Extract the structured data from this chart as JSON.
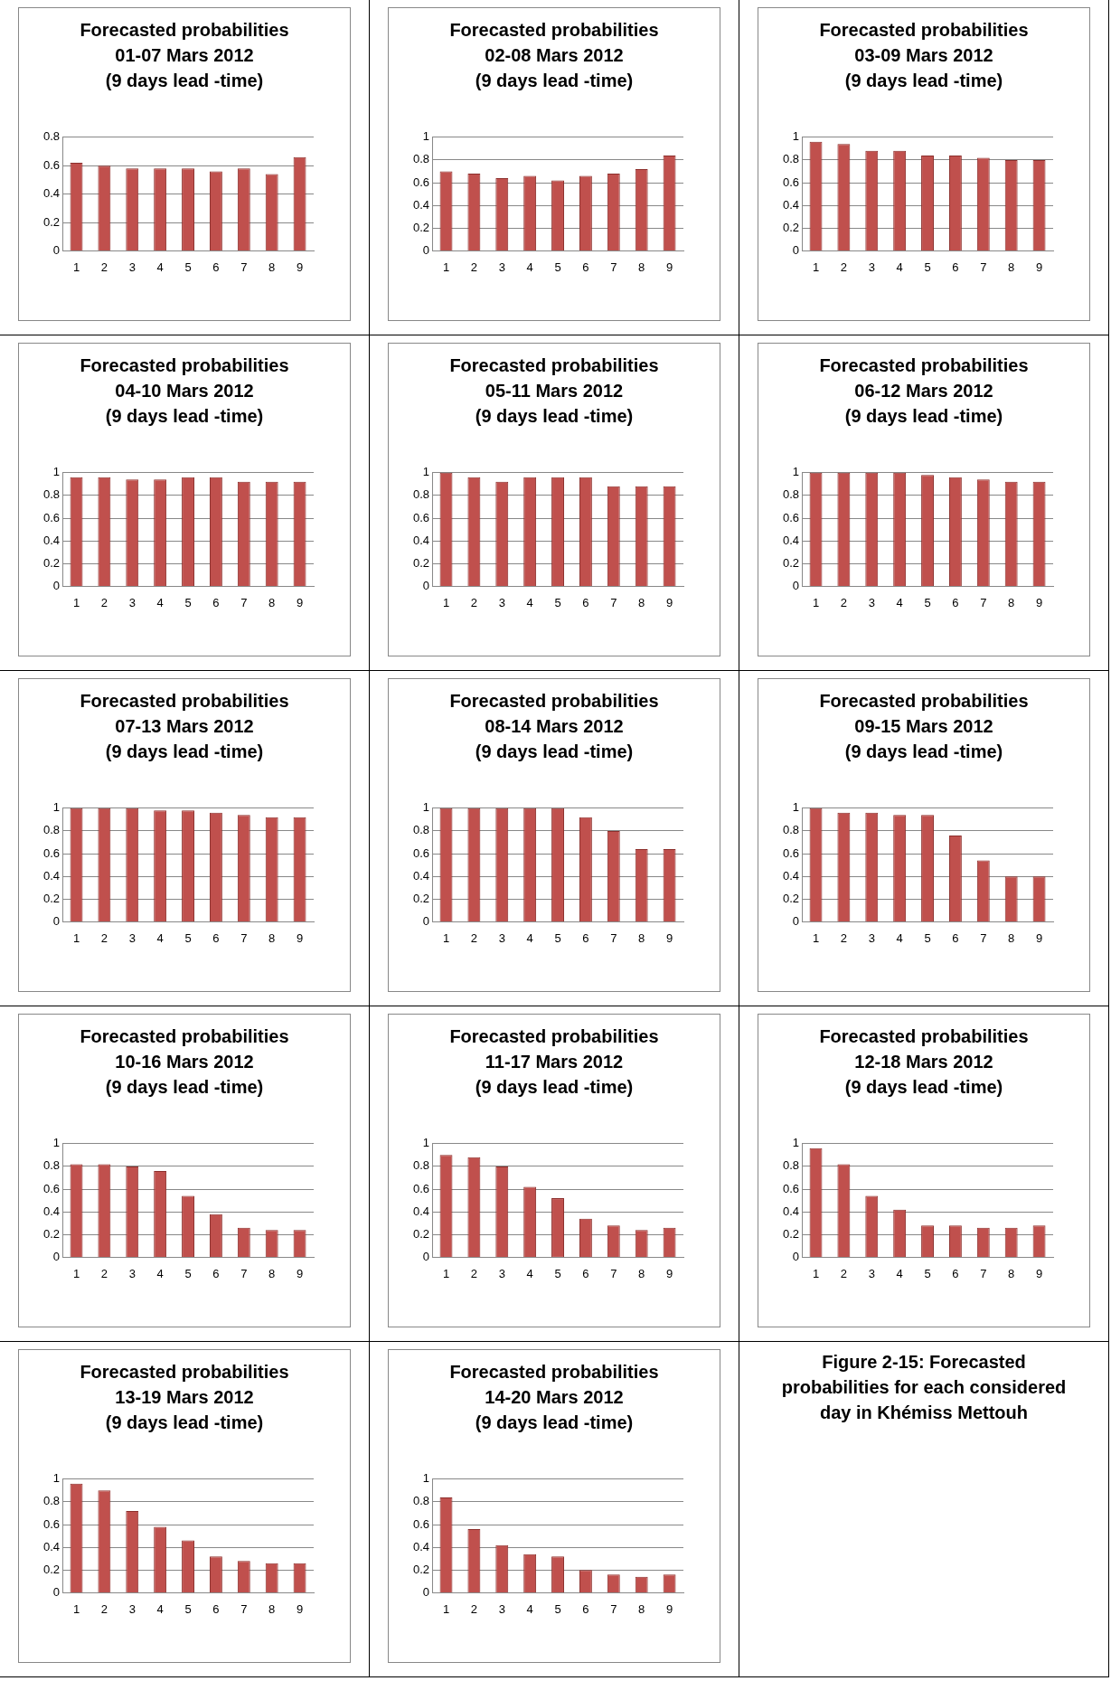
{
  "chart_data": [
    {
      "type": "bar",
      "title": "Forecasted  probabilities\n01-07 Mars 2012\n(9 days lead -time)",
      "categories": [
        "1",
        "2",
        "3",
        "4",
        "5",
        "6",
        "7",
        "8",
        "9"
      ],
      "values": [
        0.62,
        0.6,
        0.58,
        0.58,
        0.58,
        0.56,
        0.58,
        0.54,
        0.66
      ],
      "color": "#c0504d",
      "ylim": [
        0,
        0.8
      ],
      "yticks": [
        0,
        0.2,
        0.4,
        0.6,
        0.8
      ],
      "grid": "y"
    },
    {
      "type": "bar",
      "title": "Forecasted  probabilities\n02-08 Mars 2012\n(9 days lead -time)",
      "categories": [
        "1",
        "2",
        "3",
        "4",
        "5",
        "6",
        "7",
        "8",
        "9"
      ],
      "values": [
        0.7,
        0.68,
        0.64,
        0.66,
        0.62,
        0.66,
        0.68,
        0.72,
        0.84
      ],
      "color": "#c0504d",
      "ylim": [
        0,
        1
      ],
      "yticks": [
        0,
        0.2,
        0.4,
        0.6,
        0.8,
        1
      ],
      "grid": "y"
    },
    {
      "type": "bar",
      "title": "Forecasted  probabilities\n03-09 Mars 2012\n(9 days lead -time)",
      "categories": [
        "1",
        "2",
        "3",
        "4",
        "5",
        "6",
        "7",
        "8",
        "9"
      ],
      "values": [
        0.96,
        0.94,
        0.88,
        0.88,
        0.84,
        0.84,
        0.82,
        0.8,
        0.8
      ],
      "color": "#c0504d",
      "ylim": [
        0,
        1
      ],
      "yticks": [
        0,
        0.2,
        0.4,
        0.6,
        0.8,
        1
      ],
      "grid": "y"
    },
    {
      "type": "bar",
      "title": "Forecasted  probabilities\n04-10 Mars 2012\n(9 days lead -time)",
      "categories": [
        "1",
        "2",
        "3",
        "4",
        "5",
        "6",
        "7",
        "8",
        "9"
      ],
      "values": [
        0.96,
        0.96,
        0.94,
        0.94,
        0.96,
        0.96,
        0.92,
        0.92,
        0.92
      ],
      "color": "#c0504d",
      "ylim": [
        0,
        1
      ],
      "yticks": [
        0,
        0.2,
        0.4,
        0.6,
        0.8,
        1
      ],
      "grid": "y"
    },
    {
      "type": "bar",
      "title": "Forecasted  probabilities\n05-11 Mars 2012\n(9 days lead -time)",
      "categories": [
        "1",
        "2",
        "3",
        "4",
        "5",
        "6",
        "7",
        "8",
        "9"
      ],
      "values": [
        1,
        0.96,
        0.92,
        0.96,
        0.96,
        0.96,
        0.88,
        0.88,
        0.88
      ],
      "color": "#c0504d",
      "ylim": [
        0,
        1
      ],
      "yticks": [
        0,
        0.2,
        0.4,
        0.6,
        0.8,
        1
      ],
      "grid": "y"
    },
    {
      "type": "bar",
      "title": "Forecasted  probabilities\n06-12 Mars 2012\n(9 days lead -time)",
      "categories": [
        "1",
        "2",
        "3",
        "4",
        "5",
        "6",
        "7",
        "8",
        "9"
      ],
      "values": [
        1,
        1,
        1,
        1,
        0.98,
        0.96,
        0.94,
        0.92,
        0.92
      ],
      "color": "#c0504d",
      "ylim": [
        0,
        1
      ],
      "yticks": [
        0,
        0.2,
        0.4,
        0.6,
        0.8,
        1
      ],
      "grid": "y"
    },
    {
      "type": "bar",
      "title": "Forecasted  probabilities\n07-13 Mars 2012\n(9 days lead -time)",
      "categories": [
        "1",
        "2",
        "3",
        "4",
        "5",
        "6",
        "7",
        "8",
        "9"
      ],
      "values": [
        1,
        1,
        1,
        0.98,
        0.98,
        0.96,
        0.94,
        0.92,
        0.92
      ],
      "color": "#c0504d",
      "ylim": [
        0,
        1
      ],
      "yticks": [
        0,
        0.2,
        0.4,
        0.6,
        0.8,
        1
      ],
      "grid": "y"
    },
    {
      "type": "bar",
      "title": "Forecasted  probabilities\n08-14 Mars 2012\n(9 days lead -time)",
      "categories": [
        "1",
        "2",
        "3",
        "4",
        "5",
        "6",
        "7",
        "8",
        "9"
      ],
      "values": [
        1,
        1,
        1,
        1,
        1,
        0.92,
        0.8,
        0.64,
        0.64
      ],
      "color": "#c0504d",
      "ylim": [
        0,
        1
      ],
      "yticks": [
        0,
        0.2,
        0.4,
        0.6,
        0.8,
        1
      ],
      "grid": "y"
    },
    {
      "type": "bar",
      "title": "Forecasted  probabilities\n09-15 Mars 2012\n(9 days lead -time)",
      "categories": [
        "1",
        "2",
        "3",
        "4",
        "5",
        "6",
        "7",
        "8",
        "9"
      ],
      "values": [
        1,
        0.96,
        0.96,
        0.94,
        0.94,
        0.76,
        0.54,
        0.4,
        0.4
      ],
      "color": "#c0504d",
      "ylim": [
        0,
        1
      ],
      "yticks": [
        0,
        0.2,
        0.4,
        0.6,
        0.8,
        1
      ],
      "grid": "y"
    },
    {
      "type": "bar",
      "title": "Forecasted  probabilities\n10-16 Mars 2012\n(9 days lead -time)",
      "categories": [
        "1",
        "2",
        "3",
        "4",
        "5",
        "6",
        "7",
        "8",
        "9"
      ],
      "values": [
        0.82,
        0.82,
        0.8,
        0.76,
        0.54,
        0.38,
        0.26,
        0.24,
        0.24
      ],
      "color": "#c0504d",
      "ylim": [
        0,
        1
      ],
      "yticks": [
        0,
        0.2,
        0.4,
        0.6,
        0.8,
        1
      ],
      "grid": "y"
    },
    {
      "type": "bar",
      "title": "Forecasted  probabilities\n11-17 Mars 2012\n(9 days lead -time)",
      "categories": [
        "1",
        "2",
        "3",
        "4",
        "5",
        "6",
        "7",
        "8",
        "9"
      ],
      "values": [
        0.9,
        0.88,
        0.8,
        0.62,
        0.52,
        0.34,
        0.28,
        0.24,
        0.26
      ],
      "color": "#c0504d",
      "ylim": [
        0,
        1
      ],
      "yticks": [
        0,
        0.2,
        0.4,
        0.6,
        0.8,
        1
      ],
      "grid": "y"
    },
    {
      "type": "bar",
      "title": "Forecasted  probabilities\n12-18 Mars 2012\n(9 days lead -time)",
      "categories": [
        "1",
        "2",
        "3",
        "4",
        "5",
        "6",
        "7",
        "8",
        "9"
      ],
      "values": [
        0.96,
        0.82,
        0.54,
        0.42,
        0.28,
        0.28,
        0.26,
        0.26,
        0.28
      ],
      "color": "#c0504d",
      "ylim": [
        0,
        1
      ],
      "yticks": [
        0,
        0.2,
        0.4,
        0.6,
        0.8,
        1
      ],
      "grid": "y"
    },
    {
      "type": "bar",
      "title": "Forecasted  probabilities\n13-19 Mars 2012\n(9 days lead -time)",
      "categories": [
        "1",
        "2",
        "3",
        "4",
        "5",
        "6",
        "7",
        "8",
        "9"
      ],
      "values": [
        0.96,
        0.9,
        0.72,
        0.58,
        0.46,
        0.32,
        0.28,
        0.26,
        0.26
      ],
      "color": "#c0504d",
      "ylim": [
        0,
        1
      ],
      "yticks": [
        0,
        0.2,
        0.4,
        0.6,
        0.8,
        1
      ],
      "grid": "y"
    },
    {
      "type": "bar",
      "title": "Forecasted  probabilities\n14-20 Mars 2012\n(9 days lead -time)",
      "categories": [
        "1",
        "2",
        "3",
        "4",
        "5",
        "6",
        "7",
        "8",
        "9"
      ],
      "values": [
        0.84,
        0.56,
        0.42,
        0.34,
        0.32,
        0.2,
        0.16,
        0.14,
        0.16
      ],
      "color": "#c0504d",
      "ylim": [
        0,
        1
      ],
      "yticks": [
        0,
        0.2,
        0.4,
        0.6,
        0.8,
        1
      ],
      "grid": "y"
    },
    {
      "type": "other",
      "title": "Figure 2-15: Forecasted probabilities for each considered day in Khémiss Mettouh"
    }
  ]
}
